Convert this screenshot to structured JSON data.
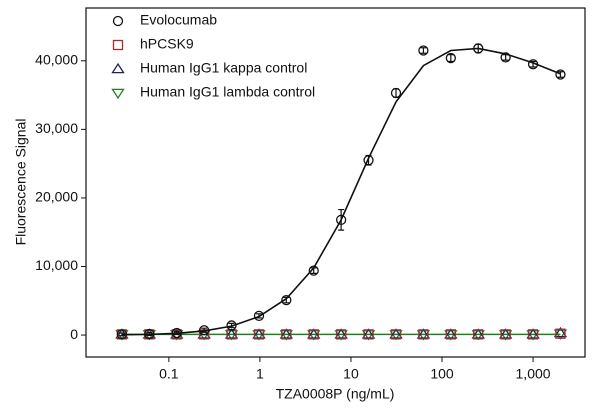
{
  "chart_data": {
    "type": "scatter",
    "x_label": "TZA0008P (ng/mL)",
    "y_label": "Fluorescence Signal",
    "x": [
      0.0305,
      0.061,
      0.122,
      0.244,
      0.488,
      0.977,
      1.95,
      3.9,
      7.8,
      15.6,
      31.25,
      62.5,
      125,
      250,
      500,
      1000,
      2000
    ],
    "xscale": "log",
    "xlim": [
      0.0123,
      3720
    ],
    "xticks": [
      0.1,
      1,
      10,
      100,
      {
        "value": 1000,
        "label": "1,000"
      }
    ],
    "ylim": [
      -3200,
      47700
    ],
    "yticks": [
      0,
      {
        "value": 10000,
        "label": "10,000"
      },
      {
        "value": 20000,
        "label": "20,000"
      },
      {
        "value": 30000,
        "label": "30,000"
      },
      {
        "value": 40000,
        "label": "40,000"
      }
    ],
    "legend": "top-left",
    "series": [
      {
        "name": "Evolocumab",
        "color": "#111111",
        "marker": "circle",
        "values": [
          100,
          150,
          300,
          700,
          1400,
          2800,
          5100,
          9400,
          16800,
          25500,
          35300,
          41500,
          40400,
          41800,
          40500,
          39500,
          38000
        ],
        "errors": [
          200,
          200,
          200,
          300,
          300,
          300,
          400,
          400,
          1500,
          700,
          600,
          400,
          500,
          600,
          400,
          400,
          400
        ],
        "fit": [
          50,
          100,
          250,
          600,
          1300,
          2700,
          5300,
          9800,
          16800,
          25800,
          34000,
          39300,
          41500,
          41800,
          41000,
          39700,
          38100
        ]
      },
      {
        "name": "hPCSK9",
        "color": "#a03030",
        "marker": "square",
        "values": [
          100,
          100,
          100,
          100,
          100,
          100,
          100,
          100,
          100,
          100,
          100,
          100,
          100,
          100,
          100,
          100,
          200
        ]
      },
      {
        "name": "Human IgG1 kappa control",
        "color": "#202060",
        "marker": "triangle-up",
        "values": [
          100,
          100,
          100,
          100,
          100,
          100,
          100,
          100,
          100,
          100,
          100,
          100,
          100,
          100,
          100,
          100,
          300
        ]
      },
      {
        "name": "Human IgG1 lambda control",
        "color": "#208020",
        "marker": "triangle-down",
        "values": [
          100,
          100,
          100,
          100,
          100,
          100,
          100,
          100,
          100,
          100,
          100,
          100,
          100,
          100,
          100,
          100,
          200
        ],
        "fit": [
          100,
          100,
          100,
          100,
          100,
          100,
          100,
          100,
          100,
          100,
          100,
          100,
          100,
          100,
          100,
          100,
          100
        ]
      }
    ]
  }
}
